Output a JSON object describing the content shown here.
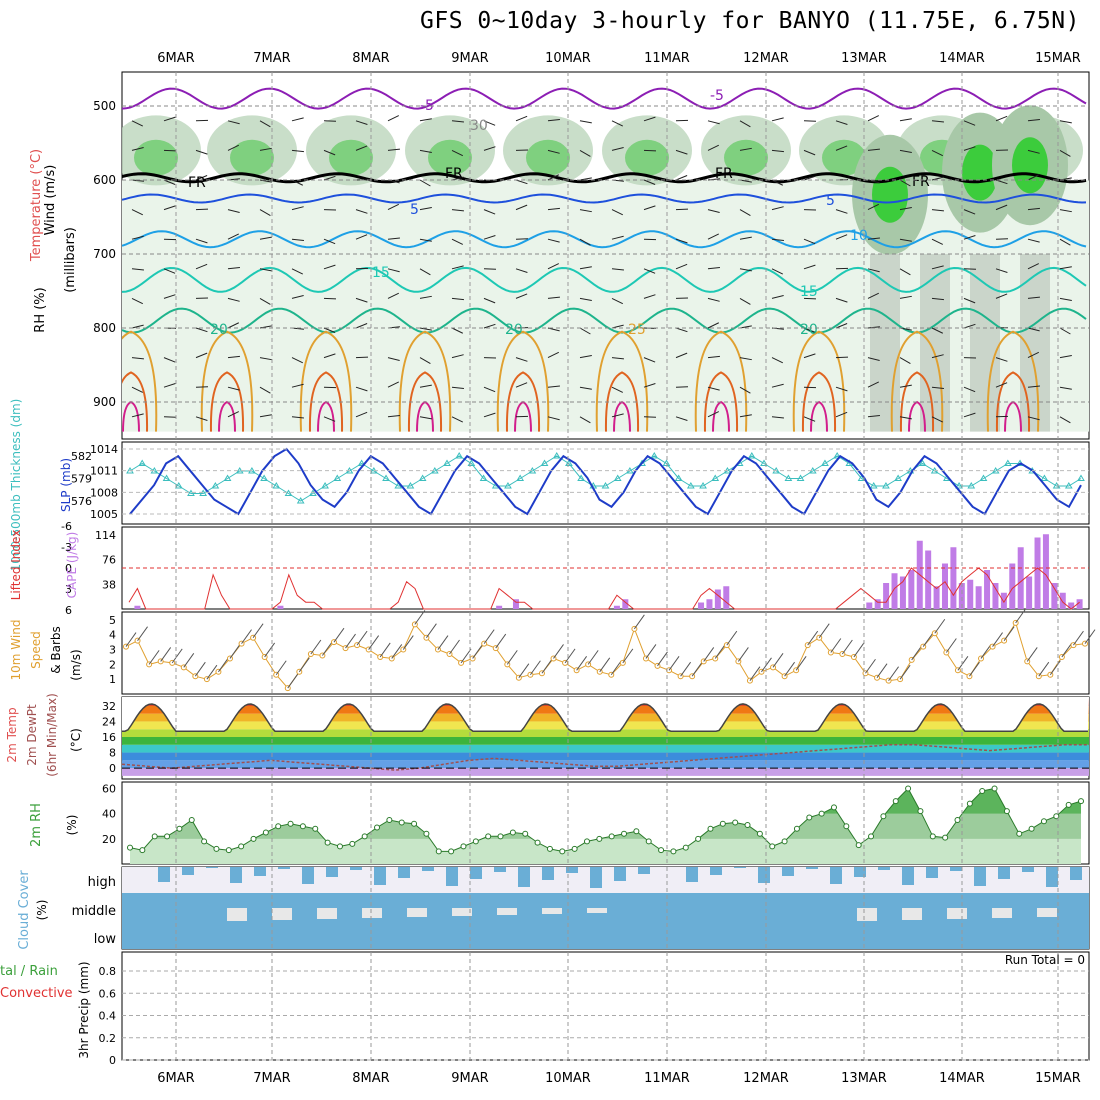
{
  "title": "GFS 0~10day 3-hourly for BANYO (11.75E, 6.75N)",
  "dates": [
    "6MAR",
    "7MAR",
    "8MAR",
    "9MAR",
    "10MAR",
    "11MAR",
    "12MAR",
    "13MAR",
    "14MAR",
    "15MAR"
  ],
  "panel_labels": {
    "upper": {
      "wind": "Wind (m/s)",
      "temp": "Temperature (°C)",
      "rh": "RH (%)",
      "mb": "(millibars)"
    },
    "slp": {
      "thick": "1000-500mb Thickness (dm)",
      "slp": "SLP (mb)"
    },
    "cape": {
      "li": "Lifted Index",
      "cape": "CAPE (J/kg)"
    },
    "wind10": {
      "a": "10m Wind",
      "b": "Speed",
      "c": "& Barbs",
      "unit": "(m/s)"
    },
    "temp2m": {
      "a": "2m Temp",
      "b": "2m DewPt",
      "c": "(6hr Min/Max)",
      "unit": "(°C)"
    },
    "rh2m": {
      "a": "2m RH",
      "unit": "(%)"
    },
    "cloud": {
      "a": "Cloud Cover",
      "unit": "(%)",
      "high": "high",
      "middle": "middle",
      "low": "low"
    },
    "precip": {
      "a": "tal / Rain",
      "b": "Convective",
      "c": "3hr Precip (mm)",
      "run_total": "Run Total = 0"
    }
  },
  "colors": {
    "rh_green": "#39c839",
    "slp_blue": "#1e3cc8",
    "thick_cyan": "#3cbebe",
    "cape_purple": "#c07ce6",
    "li_red": "#e03232",
    "wind_orange": "#e0a030",
    "rh2m_green": "#3ca03c",
    "cloud_blue": "#6aaed6",
    "temp_magenta": "#8c1eb4"
  },
  "chart_data": [
    {
      "type": "heatmap",
      "name": "upper-air",
      "y_ticks": [
        500,
        600,
        700,
        800,
        900
      ],
      "contour_labels": [
        "-5",
        "5",
        "10",
        "15",
        "20",
        "25",
        "FR",
        "30"
      ]
    },
    {
      "type": "line",
      "name": "slp-thickness",
      "y_ticks_left": [
        576,
        579,
        582
      ],
      "y_ticks_right": [
        1005,
        1008,
        1011,
        1014
      ],
      "series": [
        {
          "name": "SLP",
          "values": [
            1005,
            1007,
            1009,
            1012,
            1013,
            1011,
            1009,
            1007,
            1006,
            1005,
            1008,
            1011,
            1013,
            1014,
            1012,
            1009,
            1007,
            1006,
            1008,
            1011,
            1013,
            1012,
            1010,
            1008,
            1006,
            1005,
            1008,
            1011,
            1013,
            1012,
            1010,
            1008,
            1006,
            1005,
            1008,
            1011,
            1013,
            1012,
            1010,
            1007,
            1006,
            1008,
            1011,
            1013,
            1012,
            1010,
            1008,
            1006,
            1005,
            1008,
            1011,
            1013,
            1012,
            1010,
            1008,
            1006,
            1005,
            1008,
            1011,
            1013,
            1012,
            1010,
            1007,
            1006,
            1008,
            1011,
            1013,
            1012,
            1010,
            1008,
            1006,
            1005,
            1008,
            1011,
            1012,
            1011,
            1009,
            1007,
            1006,
            1009
          ]
        },
        {
          "name": "Thickness",
          "values": [
            580,
            581,
            580,
            579,
            578,
            577,
            577,
            578,
            579,
            580,
            580,
            579,
            578,
            577,
            576,
            577,
            578,
            579,
            580,
            581,
            580,
            579,
            578,
            578,
            579,
            580,
            581,
            582,
            581,
            579,
            578,
            578,
            579,
            580,
            581,
            582,
            581,
            579,
            578,
            578,
            579,
            580,
            581,
            582,
            581,
            579,
            578,
            578,
            579,
            580,
            581,
            582,
            581,
            580,
            579,
            579,
            580,
            581,
            582,
            581,
            579,
            578,
            578,
            579,
            580,
            581,
            580,
            579,
            578,
            578,
            579,
            580,
            581,
            581,
            580,
            579,
            578,
            578,
            579
          ]
        }
      ]
    },
    {
      "type": "bar",
      "name": "cape-li",
      "y_ticks_left": [
        -6,
        -3,
        0,
        3,
        6
      ],
      "y_ticks_right": [
        38,
        76,
        114
      ],
      "cape": [
        0,
        5,
        0,
        0,
        0,
        0,
        0,
        0,
        0,
        0,
        0,
        0,
        0,
        0,
        0,
        0,
        0,
        0,
        5,
        0,
        0,
        0,
        0,
        0,
        0,
        0,
        0,
        0,
        0,
        0,
        0,
        0,
        0,
        0,
        0,
        0,
        0,
        0,
        0,
        0,
        0,
        0,
        0,
        0,
        5,
        0,
        15,
        0,
        0,
        0,
        0,
        0,
        0,
        0,
        0,
        0,
        0,
        0,
        5,
        15,
        0,
        0,
        0,
        0,
        0,
        0,
        0,
        0,
        10,
        15,
        30,
        35,
        0,
        0,
        0,
        0,
        0,
        0,
        0,
        0,
        0,
        0,
        0,
        0,
        0,
        0,
        0,
        0,
        10,
        15,
        40,
        55,
        50,
        60,
        105,
        90,
        35,
        70,
        95,
        40,
        45,
        35,
        60,
        40,
        25,
        70,
        95,
        50,
        110,
        115,
        40,
        25,
        10,
        15
      ],
      "li": [
        5,
        3,
        6,
        6,
        6,
        6,
        6,
        6,
        6,
        6,
        1,
        4,
        6,
        6,
        6,
        6,
        6,
        6,
        5,
        1,
        4,
        5,
        5,
        6,
        6,
        6,
        6,
        6,
        6,
        6,
        6,
        6,
        5,
        2,
        3,
        6,
        6,
        6,
        6,
        6,
        6,
        6,
        6,
        6,
        3,
        4,
        5,
        5,
        6,
        6,
        6,
        6,
        6,
        6,
        6,
        6,
        6,
        6,
        4,
        5,
        6,
        6,
        6,
        6,
        6,
        6,
        6,
        6,
        4,
        3,
        4,
        5,
        6,
        6,
        6,
        6,
        6,
        6,
        6,
        6,
        6,
        6,
        6,
        6,
        6,
        5,
        4,
        3,
        4,
        5,
        5,
        3,
        2,
        0,
        1,
        2,
        3,
        2,
        4,
        2,
        1,
        0,
        1,
        3,
        5,
        3,
        2,
        1,
        0,
        1,
        3,
        5,
        6,
        5
      ]
    },
    {
      "type": "line",
      "name": "wind10m",
      "y_ticks": [
        1,
        2,
        3,
        4,
        5
      ],
      "values": [
        3.2,
        3.6,
        2.0,
        2.2,
        2.1,
        1.8,
        1.2,
        1.0,
        1.5,
        2.4,
        3.4,
        3.8,
        2.5,
        1.3,
        0.4,
        1.5,
        2.7,
        2.6,
        3.5,
        3.1,
        3.3,
        3.0,
        2.5,
        2.4,
        3.0,
        4.7,
        3.8,
        3.0,
        2.7,
        2.1,
        2.4,
        3.4,
        3.1,
        2.0,
        1.1,
        1.3,
        1.4,
        2.4,
        2.1,
        1.6,
        2.0,
        1.5,
        1.3,
        2.1,
        4.4,
        2.4,
        1.9,
        1.6,
        1.2,
        1.2,
        2.2,
        2.4,
        3.3,
        2.2,
        0.9,
        1.5,
        1.8,
        1.2,
        1.6,
        3.3,
        3.8,
        2.8,
        2.7,
        2.5,
        1.4,
        1.1,
        0.9,
        1.0,
        2.3,
        3.2,
        4.1,
        2.8,
        1.6,
        1.2,
        2.4,
        3.2,
        3.6,
        4.8,
        2.2,
        1.2,
        1.3,
        2.5,
        3.3,
        3.4
      ]
    },
    {
      "type": "area",
      "name": "temp2m",
      "y_ticks": [
        0,
        8,
        16,
        24,
        32
      ],
      "max_temp_days": [
        33,
        33,
        33,
        33,
        33,
        33,
        33,
        33,
        33,
        33
      ],
      "min_temp": 19,
      "dewpoint": [
        2,
        1,
        0,
        1,
        2,
        3,
        4,
        3,
        2,
        1,
        0,
        -1,
        0,
        2,
        4,
        5,
        4,
        3,
        2,
        1,
        1,
        2,
        3,
        4,
        5,
        6,
        7,
        8,
        9,
        10,
        11,
        12,
        12,
        11,
        10,
        9,
        10,
        11,
        12,
        12
      ]
    },
    {
      "type": "area",
      "name": "rh2m",
      "y_ticks": [
        20,
        40,
        60
      ],
      "values": [
        13,
        11,
        22,
        22,
        28,
        35,
        18,
        12,
        11,
        14,
        20,
        25,
        30,
        32,
        30,
        28,
        17,
        14,
        16,
        22,
        29,
        35,
        33,
        32,
        24,
        10,
        10,
        14,
        18,
        22,
        22,
        25,
        24,
        17,
        12,
        10,
        12,
        18,
        20,
        22,
        24,
        26,
        18,
        11,
        10,
        13,
        20,
        28,
        32,
        33,
        31,
        24,
        14,
        18,
        28,
        37,
        40,
        45,
        30,
        15,
        22,
        38,
        50,
        60,
        42,
        22,
        21,
        35,
        48,
        58,
        60,
        42,
        24,
        28,
        34,
        38,
        47,
        50
      ]
    },
    {
      "type": "bar",
      "name": "cloud-cover",
      "categories": [
        "high",
        "middle",
        "low"
      ]
    },
    {
      "type": "bar",
      "name": "precip",
      "y_ticks": [
        0,
        0.2,
        0.4,
        0.6,
        0.8
      ],
      "values": []
    }
  ]
}
